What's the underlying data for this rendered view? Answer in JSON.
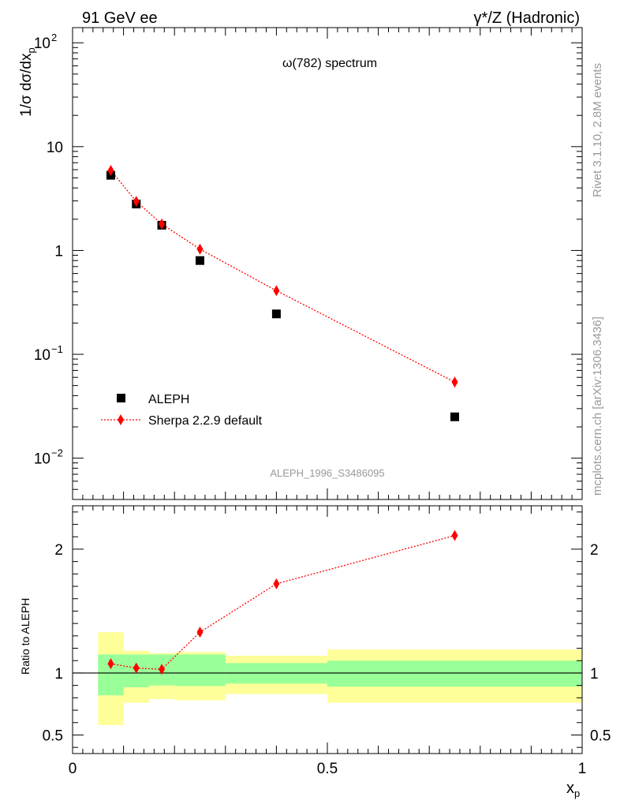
{
  "header": {
    "left": "91 GeV ee",
    "right": "γ*/Z (Hadronic)"
  },
  "side_labels": {
    "rivet": "Rivet 3.1.10,  2.8M events",
    "mcplots": "mcplots.cern.ch [arXiv:1306.3436]"
  },
  "colors": {
    "data": "#000000",
    "mc": "#ff0000",
    "band_inner": "#99ff99",
    "band_outer": "#ffff99",
    "watermark": "#999999"
  },
  "chart_data": [
    {
      "type": "scatter",
      "panel": "main",
      "title": "ω(782) spectrum",
      "watermark": "ALEPH_1996_S3486095",
      "ylabel": "1/σ dσ/dx_p",
      "xlabel": "",
      "yscale": "log",
      "xlim": [
        0,
        1
      ],
      "ylim": [
        0.004,
        140
      ],
      "yticks": [
        {
          "value": 100,
          "label": "10",
          "exp": "2"
        },
        {
          "value": 10,
          "label": "10",
          "exp": ""
        },
        {
          "value": 1,
          "label": "1",
          "exp": ""
        },
        {
          "value": 0.1,
          "label": "10",
          "exp": "−1"
        },
        {
          "value": 0.01,
          "label": "10",
          "exp": "−2"
        }
      ],
      "legend_position": "bottom-left",
      "series": [
        {
          "name": "ALEPH",
          "marker": "square",
          "x": [
            0.075,
            0.125,
            0.175,
            0.25,
            0.4,
            0.75
          ],
          "y": [
            5.3,
            2.8,
            1.75,
            0.8,
            0.245,
            0.025
          ]
        },
        {
          "name": "Sherpa 2.2.9 default",
          "marker": "diamond",
          "line": "dotted",
          "x": [
            0.075,
            0.125,
            0.175,
            0.25,
            0.4,
            0.75
          ],
          "y": [
            5.9,
            2.97,
            1.8,
            1.03,
            0.41,
            0.054
          ]
        }
      ]
    },
    {
      "type": "line",
      "panel": "ratio",
      "ylabel": "Ratio to ALEPH",
      "xlabel": "x_p",
      "xlim": [
        0,
        1
      ],
      "ylim": [
        0.35,
        2.35
      ],
      "xticks": [
        {
          "value": 0,
          "label": "0"
        },
        {
          "value": 0.5,
          "label": "0.5"
        },
        {
          "value": 1,
          "label": "1"
        }
      ],
      "yticks": [
        {
          "value": 0.5,
          "label": "0.5"
        },
        {
          "value": 1,
          "label": "1"
        },
        {
          "value": 2,
          "label": "2"
        }
      ],
      "bands": [
        {
          "x0": 0.05,
          "x1": 0.1,
          "inner": [
            0.82,
            1.15
          ],
          "outer": [
            0.58,
            1.33
          ]
        },
        {
          "x0": 0.1,
          "x1": 0.15,
          "inner": [
            0.885,
            1.15
          ],
          "outer": [
            0.76,
            1.18
          ]
        },
        {
          "x0": 0.15,
          "x1": 0.2,
          "inner": [
            0.9,
            1.15
          ],
          "outer": [
            0.79,
            1.16
          ]
        },
        {
          "x0": 0.2,
          "x1": 0.3,
          "inner": [
            0.895,
            1.15
          ],
          "outer": [
            0.78,
            1.17
          ]
        },
        {
          "x0": 0.3,
          "x1": 0.5,
          "inner": [
            0.915,
            1.08
          ],
          "outer": [
            0.83,
            1.14
          ]
        },
        {
          "x0": 0.5,
          "x1": 1.0,
          "inner": [
            0.89,
            1.1
          ],
          "outer": [
            0.76,
            1.19
          ]
        }
      ],
      "series": [
        {
          "name": "Sherpa 2.2.9 default",
          "marker": "diamond",
          "line": "dotted",
          "x": [
            0.075,
            0.125,
            0.175,
            0.25,
            0.4,
            0.75
          ],
          "y": [
            1.075,
            1.04,
            1.03,
            1.33,
            1.72,
            2.11
          ]
        }
      ]
    }
  ]
}
